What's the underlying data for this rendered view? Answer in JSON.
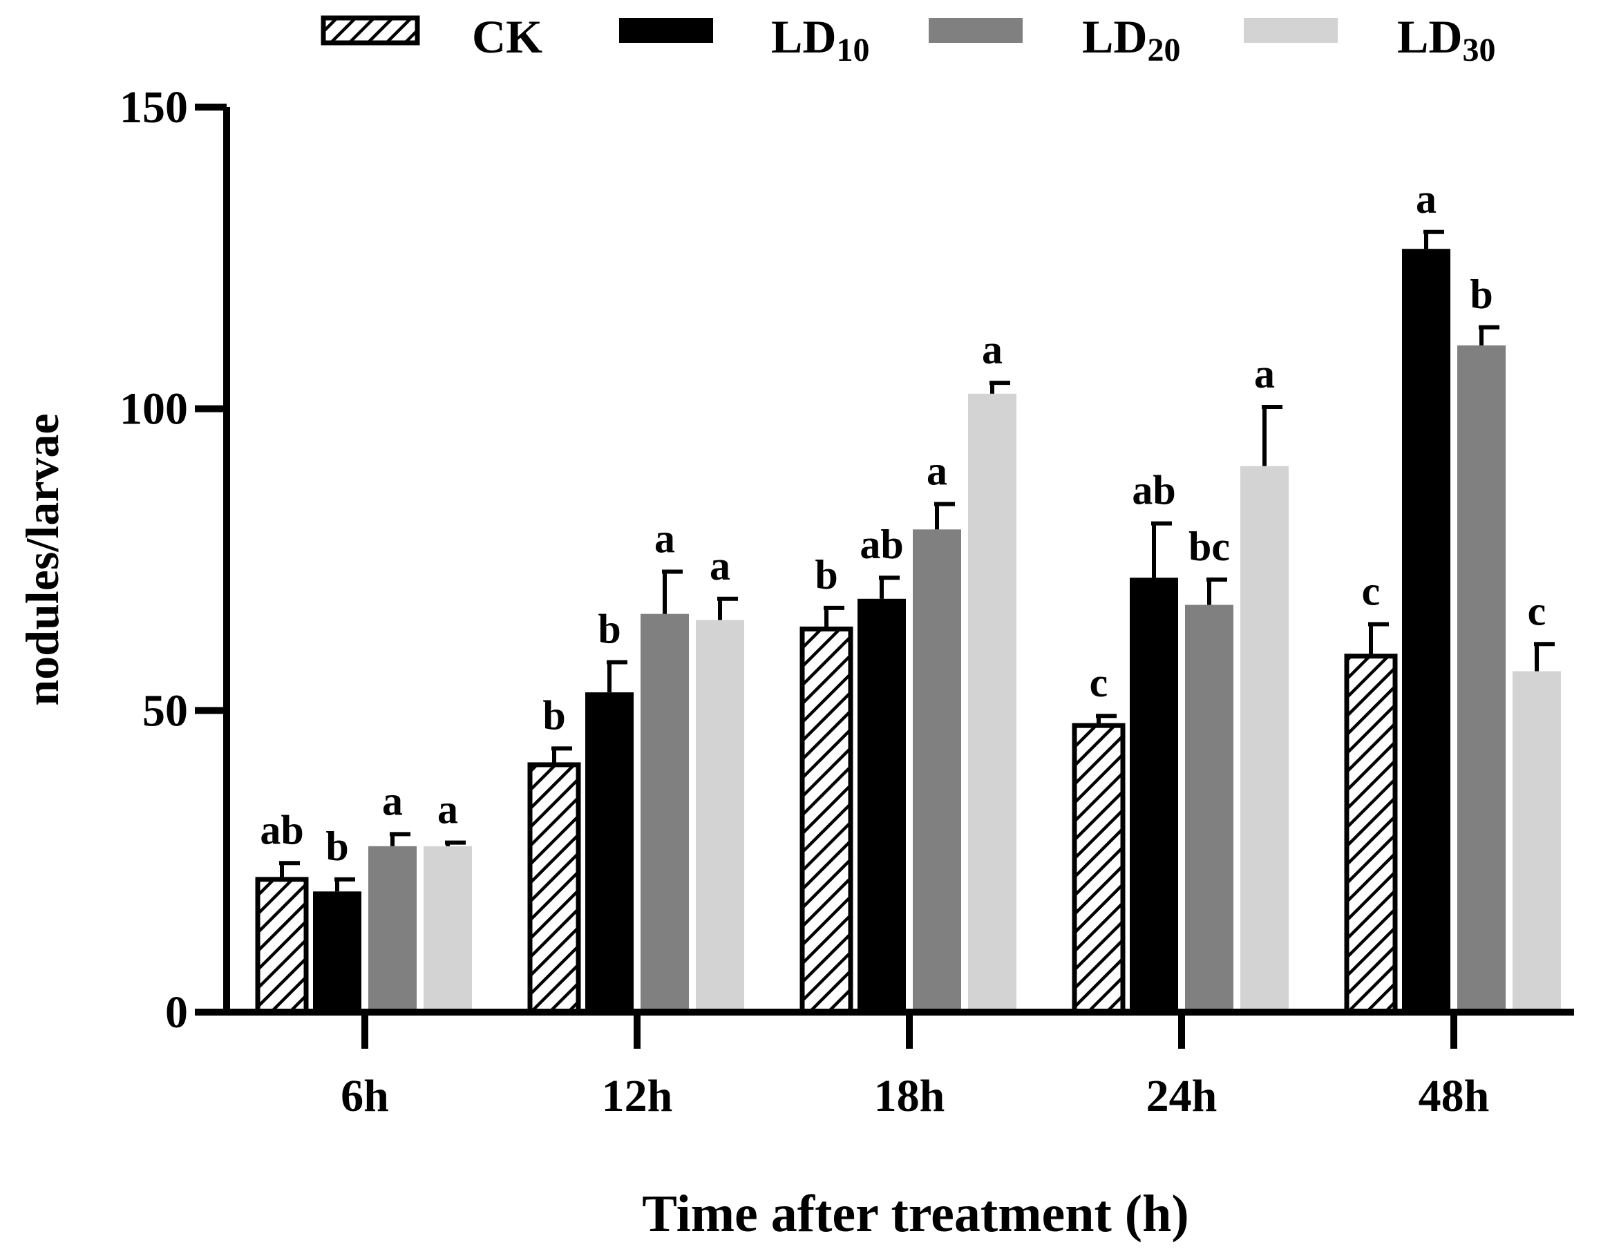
{
  "chart_data": {
    "type": "bar",
    "title": "",
    "xlabel": "Time after treatment (h)",
    "ylabel": "nodules/larvae",
    "ylim": [
      0,
      150
    ],
    "yticks": [
      0,
      50,
      100,
      150
    ],
    "categories": [
      "6h",
      "12h",
      "18h",
      "24h",
      "48h"
    ],
    "legend_position": "top",
    "series": [
      {
        "name_main": "CK",
        "name_sub": "",
        "fill": "hatch",
        "color": "#000000",
        "values": [
          22,
          41,
          63.5,
          47.5,
          59
        ],
        "errors": [
          2.7,
          2.7,
          3.5,
          1.6,
          5.3
        ],
        "letters": [
          "ab",
          "b",
          "b",
          "c",
          "c"
        ]
      },
      {
        "name_main": "LD",
        "name_sub": "10",
        "fill": "solid",
        "color": "#000000",
        "values": [
          20,
          53,
          68.5,
          72,
          126.5
        ],
        "errors": [
          2.0,
          5.0,
          3.5,
          9.0,
          2.8
        ],
        "letters": [
          "b",
          "b",
          "ab",
          "ab",
          "a"
        ]
      },
      {
        "name_main": "LD",
        "name_sub": "20",
        "fill": "solid",
        "color": "#808080",
        "values": [
          27.5,
          66,
          80,
          67.5,
          110.5
        ],
        "errors": [
          2.0,
          7.0,
          4.2,
          4.2,
          3.0
        ],
        "letters": [
          "a",
          "a",
          "a",
          "bc",
          "b"
        ]
      },
      {
        "name_main": "LD",
        "name_sub": "30",
        "fill": "solid",
        "color": "#d3d3d3",
        "values": [
          27.5,
          65,
          102.5,
          90.5,
          56.5
        ],
        "errors": [
          0.6,
          3.5,
          1.8,
          9.8,
          4.5
        ],
        "letters": [
          "a",
          "a",
          "a",
          "a",
          "c"
        ]
      }
    ]
  }
}
